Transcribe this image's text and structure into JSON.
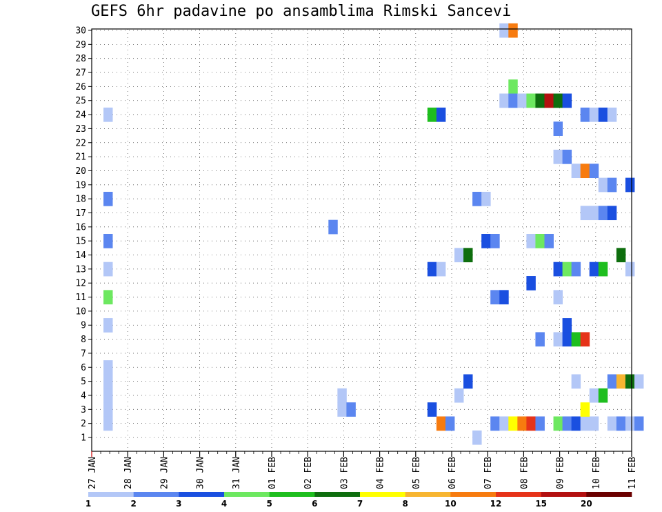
{
  "chart_data": {
    "type": "heatmap",
    "title": "GEFS 6hr padavine po ansamblima Rimski Sancevi",
    "xlabel": "",
    "ylabel": "",
    "x_tick_labels": [
      "27 JAN",
      "28 JAN",
      "29 JAN",
      "30 JAN",
      "31 JAN",
      "01 FEB",
      "02 FEB",
      "03 FEB",
      "04 FEB",
      "05 FEB",
      "06 FEB",
      "07 FEB",
      "08 FEB",
      "09 FEB",
      "10 FEB",
      "11 FEB"
    ],
    "y_tick_labels": [
      "1",
      "2",
      "3",
      "4",
      "5",
      "6",
      "7",
      "8",
      "9",
      "10",
      "11",
      "12",
      "13",
      "14",
      "15",
      "16",
      "17",
      "18",
      "19",
      "20",
      "21",
      "22",
      "23",
      "24",
      "25",
      "26",
      "27",
      "28",
      "29",
      "30"
    ],
    "x_range_steps": [
      0,
      60
    ],
    "y_range": [
      0,
      30
    ],
    "grid": true,
    "time_step_hours": 6,
    "colorbar": {
      "labels": [
        "1",
        "2",
        "3",
        "4",
        "5",
        "6",
        "7",
        "8",
        "10",
        "12",
        "15",
        "20"
      ],
      "colors": [
        "#b3c7f7",
        "#5b86f0",
        "#1a4fe0",
        "#6de860",
        "#1ebe1e",
        "#0e6e0e",
        "#ffff00",
        "#f7b531",
        "#f77b0f",
        "#e63319",
        "#b31010",
        "#6b0000"
      ]
    },
    "cells": [
      {
        "member": 2,
        "step": 1,
        "level": 0
      },
      {
        "member": 3,
        "step": 1,
        "level": 0
      },
      {
        "member": 4,
        "step": 1,
        "level": 0
      },
      {
        "member": 5,
        "step": 1,
        "level": 0
      },
      {
        "member": 6,
        "step": 1,
        "level": 0
      },
      {
        "member": 9,
        "step": 1,
        "level": 0
      },
      {
        "member": 11,
        "step": 1,
        "level": 3
      },
      {
        "member": 13,
        "step": 1,
        "level": 0
      },
      {
        "member": 15,
        "step": 1,
        "level": 1
      },
      {
        "member": 18,
        "step": 1,
        "level": 1
      },
      {
        "member": 24,
        "step": 1,
        "level": 0
      },
      {
        "member": 16,
        "step": 26,
        "level": 1
      },
      {
        "member": 3,
        "step": 27,
        "level": 0
      },
      {
        "member": 4,
        "step": 27,
        "level": 0
      },
      {
        "member": 3,
        "step": 28,
        "level": 1
      },
      {
        "member": 24,
        "step": 37,
        "level": 4
      },
      {
        "member": 24,
        "step": 38,
        "level": 2
      },
      {
        "member": 13,
        "step": 37,
        "level": 2
      },
      {
        "member": 13,
        "step": 38,
        "level": 0
      },
      {
        "member": 3,
        "step": 37,
        "level": 2
      },
      {
        "member": 2,
        "step": 38,
        "level": 8
      },
      {
        "member": 2,
        "step": 39,
        "level": 1
      },
      {
        "member": 4,
        "step": 40,
        "level": 0
      },
      {
        "member": 5,
        "step": 41,
        "level": 2
      },
      {
        "member": 14,
        "step": 40,
        "level": 0
      },
      {
        "member": 14,
        "step": 41,
        "level": 5
      },
      {
        "member": 1,
        "step": 42,
        "level": 0
      },
      {
        "member": 18,
        "step": 42,
        "level": 1
      },
      {
        "member": 18,
        "step": 43,
        "level": 0
      },
      {
        "member": 15,
        "step": 43,
        "level": 2
      },
      {
        "member": 15,
        "step": 44,
        "level": 1
      },
      {
        "member": 11,
        "step": 44,
        "level": 1
      },
      {
        "member": 11,
        "step": 45,
        "level": 2
      },
      {
        "member": 2,
        "step": 44,
        "level": 1
      },
      {
        "member": 2,
        "step": 45,
        "level": 0
      },
      {
        "member": 2,
        "step": 46,
        "level": 6
      },
      {
        "member": 2,
        "step": 47,
        "level": 8
      },
      {
        "member": 2,
        "step": 48,
        "level": 9
      },
      {
        "member": 2,
        "step": 49,
        "level": 1
      },
      {
        "member": 30,
        "step": 45,
        "level": 0
      },
      {
        "member": 30,
        "step": 46,
        "level": 8
      },
      {
        "member": 26,
        "step": 46,
        "level": 3
      },
      {
        "member": 25,
        "step": 45,
        "level": 0
      },
      {
        "member": 25,
        "step": 46,
        "level": 1
      },
      {
        "member": 25,
        "step": 47,
        "level": 0
      },
      {
        "member": 25,
        "step": 48,
        "level": 3
      },
      {
        "member": 25,
        "step": 49,
        "level": 5
      },
      {
        "member": 25,
        "step": 50,
        "level": 10
      },
      {
        "member": 25,
        "step": 51,
        "level": 5
      },
      {
        "member": 25,
        "step": 52,
        "level": 2
      },
      {
        "member": 12,
        "step": 48,
        "level": 2
      },
      {
        "member": 15,
        "step": 48,
        "level": 0
      },
      {
        "member": 15,
        "step": 49,
        "level": 3
      },
      {
        "member": 15,
        "step": 50,
        "level": 1
      },
      {
        "member": 8,
        "step": 49,
        "level": 1
      },
      {
        "member": 2,
        "step": 51,
        "level": 3
      },
      {
        "member": 2,
        "step": 52,
        "level": 1
      },
      {
        "member": 2,
        "step": 53,
        "level": 2
      },
      {
        "member": 2,
        "step": 54,
        "level": 0
      },
      {
        "member": 2,
        "step": 55,
        "level": 0
      },
      {
        "member": 2,
        "step": 57,
        "level": 0
      },
      {
        "member": 2,
        "step": 58,
        "level": 1
      },
      {
        "member": 2,
        "step": 59,
        "level": 0
      },
      {
        "member": 2,
        "step": 60,
        "level": 1
      },
      {
        "member": 23,
        "step": 51,
        "level": 1
      },
      {
        "member": 21,
        "step": 51,
        "level": 0
      },
      {
        "member": 21,
        "step": 52,
        "level": 1
      },
      {
        "member": 13,
        "step": 51,
        "level": 2
      },
      {
        "member": 13,
        "step": 52,
        "level": 3
      },
      {
        "member": 13,
        "step": 53,
        "level": 1
      },
      {
        "member": 13,
        "step": 55,
        "level": 2
      },
      {
        "member": 13,
        "step": 56,
        "level": 4
      },
      {
        "member": 13,
        "step": 59,
        "level": 0
      },
      {
        "member": 11,
        "step": 51,
        "level": 0
      },
      {
        "member": 8,
        "step": 51,
        "level": 0
      },
      {
        "member": 8,
        "step": 52,
        "level": 2
      },
      {
        "member": 8,
        "step": 53,
        "level": 4
      },
      {
        "member": 8,
        "step": 54,
        "level": 9
      },
      {
        "member": 9,
        "step": 52,
        "level": 2
      },
      {
        "member": 20,
        "step": 53,
        "level": 0
      },
      {
        "member": 20,
        "step": 54,
        "level": 8
      },
      {
        "member": 20,
        "step": 55,
        "level": 1
      },
      {
        "member": 5,
        "step": 53,
        "level": 0
      },
      {
        "member": 5,
        "step": 57,
        "level": 1
      },
      {
        "member": 5,
        "step": 58,
        "level": 7
      },
      {
        "member": 5,
        "step": 59,
        "level": 5
      },
      {
        "member": 5,
        "step": 60,
        "level": 0
      },
      {
        "member": 3,
        "step": 54,
        "level": 6
      },
      {
        "member": 4,
        "step": 55,
        "level": 0
      },
      {
        "member": 4,
        "step": 56,
        "level": 4
      },
      {
        "member": 24,
        "step": 54,
        "level": 1
      },
      {
        "member": 24,
        "step": 55,
        "level": 0
      },
      {
        "member": 24,
        "step": 56,
        "level": 2
      },
      {
        "member": 24,
        "step": 57,
        "level": 0
      },
      {
        "member": 17,
        "step": 54,
        "level": 0
      },
      {
        "member": 17,
        "step": 55,
        "level": 0
      },
      {
        "member": 17,
        "step": 56,
        "level": 1
      },
      {
        "member": 17,
        "step": 57,
        "level": 2
      },
      {
        "member": 19,
        "step": 56,
        "level": 0
      },
      {
        "member": 19,
        "step": 57,
        "level": 1
      },
      {
        "member": 19,
        "step": 59,
        "level": 2
      },
      {
        "member": 14,
        "step": 58,
        "level": 5
      }
    ]
  }
}
